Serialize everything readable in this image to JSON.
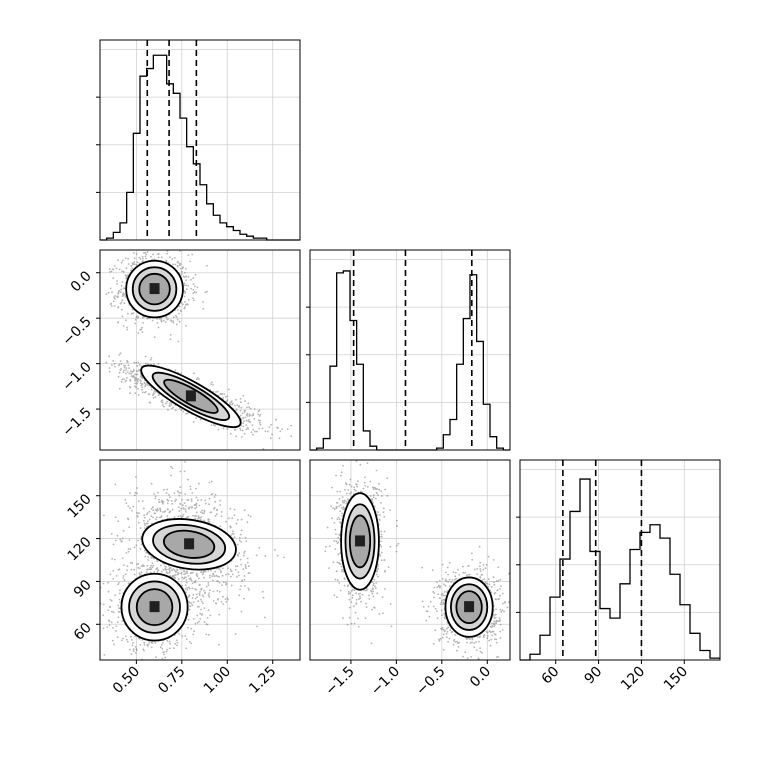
{
  "chart_data": {
    "type": "corner",
    "parameters": [
      {
        "range": [
          0.3,
          1.4
        ],
        "quantiles": [
          0.56,
          0.68,
          0.83
        ],
        "ticks": [
          0.5,
          0.75,
          1.0,
          1.25
        ],
        "tick_labels": [
          "0.50",
          "0.75",
          "1.00",
          "1.25"
        ]
      },
      {
        "range": [
          -1.95,
          0.25
        ],
        "quantiles": [
          -1.47,
          -0.9,
          -0.17
        ],
        "ticks": [
          0.0,
          -0.5,
          -1.0,
          -1.5
        ],
        "tick_labels": [
          "0.0",
          "−0.5",
          "−1.0",
          "−1.5"
        ]
      },
      {
        "range": [
          35,
          175
        ],
        "quantiles": [
          65,
          88,
          120
        ],
        "ticks": [
          60,
          90,
          120,
          150
        ],
        "tick_labels": [
          "60",
          "90",
          "120",
          "150"
        ]
      }
    ],
    "histograms": [
      {
        "param": 0,
        "bins": [
          0.3,
          1.4
        ],
        "counts": [
          0,
          0.01,
          0.04,
          0.09,
          0.25,
          0.56,
          0.86,
          0.9,
          0.97,
          0.97,
          0.82,
          0.77,
          0.64,
          0.49,
          0.4,
          0.29,
          0.19,
          0.13,
          0.09,
          0.07,
          0.05,
          0.03,
          0.02,
          0.01,
          0.01,
          0,
          0,
          0,
          0,
          0
        ]
      },
      {
        "param": 1,
        "bins": [
          -1.95,
          0.25
        ],
        "counts": [
          0,
          0.01,
          0.06,
          0.44,
          0.93,
          0.94,
          0.68,
          0.45,
          0.1,
          0.02,
          0,
          0,
          0,
          0,
          0,
          0,
          0,
          0,
          0,
          0.01,
          0.08,
          0.16,
          0.45,
          0.69,
          0.92,
          0.57,
          0.24,
          0.07,
          0.01,
          0
        ]
      },
      {
        "param": 2,
        "bins": [
          35,
          175
        ],
        "counts": [
          0,
          0.03,
          0.13,
          0.33,
          0.53,
          0.78,
          0.95,
          0.57,
          0.27,
          0.22,
          0.4,
          0.58,
          0.67,
          0.71,
          0.64,
          0.45,
          0.29,
          0.14,
          0.05,
          0.01
        ]
      }
    ],
    "modes": {
      "mode_a": {
        "x": 0.6,
        "y": -0.18,
        "z": 72
      },
      "mode_b": {
        "x": 0.8,
        "y": -1.35,
        "z": 116
      }
    }
  }
}
